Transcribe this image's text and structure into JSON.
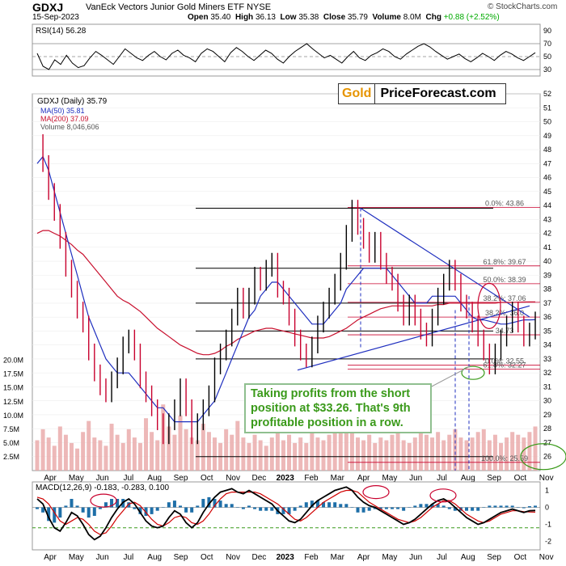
{
  "header": {
    "ticker": "GDXJ",
    "description": "VanEck Vectors Junior Gold Miners ETF NYSE",
    "watermark": "© StockCharts.com",
    "date": "15-Sep-2023",
    "open_label": "Open",
    "open": "35.40",
    "high_label": "High",
    "high": "36.13",
    "low_label": "Low",
    "low": "35.38",
    "close_label": "Close",
    "close": "35.79",
    "volume_label": "Volume",
    "volume": "8.0M",
    "chg_label": "Chg",
    "chg": "+0.88 (+2.52%)"
  },
  "colors": {
    "price_up": "#000000",
    "price_down": "#c8002d",
    "ma50": "#1f2fbf",
    "ma200": "#c8102e",
    "volume": "#e8a6a6",
    "trendline": "#1f2fbf",
    "fib_line": "#c8002d",
    "annotation": "#3a9a1a",
    "macd": "#000000",
    "signal": "#d00000",
    "histogram": "#1e6fa8"
  },
  "logo": {
    "gold": "Gold",
    "rest": "PriceForecast.com"
  },
  "annotation": "Taking profits from the short position at $33.26. That's 9th profitable position in a row.",
  "chart_data": [
    {
      "type": "line",
      "title": "RSI(14) 56.28",
      "ylim": [
        20,
        100
      ],
      "yticks": [
        "90",
        "70",
        "50",
        "30"
      ],
      "reference_lines": [
        70,
        50,
        30
      ],
      "series": [
        {
          "name": "RSI(14)",
          "last_value": 56.28,
          "values": [
            55,
            35,
            30,
            45,
            38,
            52,
            40,
            33,
            36,
            48,
            58,
            52,
            45,
            38,
            50,
            62,
            55,
            48,
            44,
            52,
            58,
            50,
            45,
            55,
            60,
            52,
            48,
            42,
            55,
            62,
            58,
            50,
            42,
            56,
            64,
            58,
            50,
            44,
            52,
            60,
            55,
            46,
            40,
            50,
            58,
            64,
            70,
            62,
            55,
            48,
            52,
            46,
            40,
            50,
            58,
            48,
            44,
            52,
            56,
            62,
            58,
            50,
            46,
            54,
            60,
            66,
            70,
            65,
            58,
            52,
            46,
            50,
            54,
            47,
            42,
            48,
            55,
            50,
            44,
            52,
            58,
            54,
            48,
            44,
            50,
            56
          ]
        }
      ]
    },
    {
      "type": "line",
      "title": "GDXJ (Daily) 35.79",
      "ylim": [
        25,
        52
      ],
      "yticks": [
        "52",
        "51",
        "50",
        "49",
        "48",
        "47",
        "46",
        "45",
        "44",
        "43",
        "42",
        "41",
        "40",
        "39",
        "38",
        "37",
        "36",
        "35",
        "34",
        "33",
        "32",
        "31",
        "30",
        "29",
        "28",
        "27",
        "26"
      ],
      "xticks": [
        "Apr",
        "May",
        "Jun",
        "Jul",
        "Aug",
        "Sep",
        "Oct",
        "Nov",
        "Dec",
        "2023",
        "Feb",
        "Mar",
        "Apr",
        "May",
        "Jun",
        "Jul",
        "Aug",
        "Sep",
        "Oct",
        "Nov"
      ],
      "legend_position": "top-left",
      "series": [
        {
          "name": "GDXJ (Daily) 35.79",
          "values": [
            48.5,
            47.0,
            45.0,
            43.5,
            41.5,
            39.5,
            38.0,
            36.5,
            35.5,
            33.5,
            32.0,
            31.0,
            30.5,
            31.5,
            32.5,
            34.0,
            34.5,
            33.5,
            31.5,
            30.5,
            29.5,
            28.5,
            27.5,
            28.5,
            29.5,
            31.0,
            29.5,
            27.5,
            28.5,
            29.5,
            30.5,
            32.5,
            33.5,
            34.5,
            36.0,
            37.5,
            36.5,
            37.5,
            39.0,
            38.5,
            39.5,
            40.0,
            38.0,
            37.5,
            36.0,
            34.5,
            33.5,
            33.0,
            34.0,
            35.5,
            36.5,
            37.5,
            38.5,
            40.0,
            42.0,
            43.8,
            42.5,
            41.5,
            40.5,
            41.5,
            40.0,
            39.0,
            38.5,
            37.0,
            36.0,
            37.0,
            36.0,
            35.0,
            34.5,
            36.0,
            37.5,
            38.5,
            39.5,
            38.5,
            37.0,
            36.5,
            35.5,
            34.5,
            33.5,
            32.5,
            33.5,
            34.5,
            35.5,
            36.5,
            35.5,
            34.5,
            35.0,
            35.79
          ]
        },
        {
          "name": "MA(50) 35.81",
          "values": [
            47.0,
            47.5,
            46.5,
            45.0,
            43.5,
            42.0,
            40.5,
            39.0,
            37.5,
            36.0,
            35.0,
            34.0,
            33.0,
            32.5,
            32.0,
            32.0,
            32.0,
            31.5,
            31.0,
            30.5,
            30.0,
            29.5,
            29.5,
            29.0,
            28.5,
            28.5,
            28.5,
            28.5,
            28.5,
            29.0,
            29.5,
            30.0,
            31.0,
            32.0,
            33.0,
            34.0,
            35.0,
            36.0,
            36.5,
            37.5,
            38.0,
            38.5,
            38.5,
            38.0,
            37.5,
            37.0,
            36.5,
            36.0,
            35.5,
            35.5,
            35.5,
            36.0,
            36.5,
            37.0,
            38.0,
            38.5,
            39.0,
            39.5,
            39.5,
            39.5,
            39.5,
            39.5,
            39.0,
            38.5,
            38.0,
            37.5,
            37.0,
            37.0,
            37.0,
            37.5,
            37.5,
            37.5,
            37.5,
            37.5,
            37.0,
            36.5,
            36.0,
            35.8,
            35.8,
            35.7,
            35.6,
            35.5,
            35.5,
            35.6,
            35.7,
            35.8,
            35.8,
            35.81
          ]
        },
        {
          "name": "MA(200) 37.09",
          "values": [
            42.0,
            42.2,
            42.2,
            42.0,
            41.8,
            41.5,
            41.2,
            40.8,
            40.5,
            40.0,
            39.5,
            39.0,
            38.5,
            38.0,
            37.5,
            37.2,
            37.0,
            36.7,
            36.4,
            36.0,
            35.6,
            35.2,
            34.9,
            34.6,
            34.3,
            34.0,
            33.8,
            33.6,
            33.4,
            33.3,
            33.3,
            33.4,
            33.6,
            33.9,
            34.1,
            34.4,
            34.6,
            34.8,
            35.0,
            35.1,
            35.2,
            35.2,
            35.1,
            35.0,
            34.9,
            34.8,
            34.7,
            34.6,
            34.5,
            34.5,
            34.5,
            34.6,
            34.8,
            35.0,
            35.2,
            35.5,
            35.8,
            36.0,
            36.2,
            36.4,
            36.6,
            36.7,
            36.8,
            36.8,
            36.8,
            36.8,
            36.8,
            36.8,
            36.8,
            36.8,
            36.9,
            36.9,
            37.0,
            37.0,
            37.0,
            37.0,
            37.0,
            37.0,
            37.0,
            37.0,
            37.0,
            37.05,
            37.05,
            37.05,
            37.07,
            37.08,
            37.09,
            37.09
          ]
        }
      ],
      "fibonacci": [
        {
          "label": "0.0%: 43.86",
          "value": 43.86
        },
        {
          "label": "61.8%: 39.67",
          "value": 39.67
        },
        {
          "label": "50.0%: 38.39",
          "value": 38.39
        },
        {
          "label": "38.2%: 37.06",
          "value": 37.06
        },
        {
          "label": "38.2%: 36.0",
          "value": 36.0
        },
        {
          "label": "34.73",
          "value": 34.73
        },
        {
          "label": "0.0%: 32.55",
          "value": 32.55
        },
        {
          "label": "61.8%: 32.27",
          "value": 32.27
        },
        {
          "label": "100.0%: 25.59",
          "value": 25.59
        }
      ],
      "horizontal_levels": [
        43.8,
        39.5,
        37.0,
        35.0,
        33.0,
        26.0
      ]
    },
    {
      "type": "bar",
      "title": "Volume 8,046,606",
      "ylim": [
        0,
        22000000
      ],
      "yticks": [
        "20.0M",
        "17.5M",
        "15.0M",
        "12.5M",
        "10.0M",
        "7.5M",
        "5.0M",
        "2.5M"
      ],
      "series": [
        {
          "name": "Volume",
          "values": [
            5.5,
            7.5,
            6.0,
            4.5,
            8.0,
            6.5,
            5.0,
            4.0,
            7.0,
            9.0,
            6.0,
            5.5,
            4.5,
            8.5,
            6.5,
            5.0,
            7.5,
            6.0,
            5.0,
            9.5,
            7.0,
            5.5,
            12.0,
            8.0,
            6.5,
            10.0,
            7.5,
            6.0,
            5.5,
            8.5,
            7.0,
            6.0,
            5.0,
            7.5,
            6.5,
            9.0,
            6.0,
            5.0,
            6.5,
            5.5,
            4.5,
            6.0,
            7.5,
            5.5,
            6.5,
            5.0,
            6.0,
            5.0,
            7.0,
            6.0,
            5.5,
            6.5,
            7.5,
            8.0,
            9.0,
            8.5,
            6.0,
            5.5,
            6.5,
            5.0,
            6.0,
            5.5,
            6.5,
            7.0,
            5.5,
            5.0,
            6.0,
            7.5,
            6.5,
            6.0,
            7.0,
            5.5,
            6.5,
            7.5,
            6.0,
            5.5,
            6.0,
            7.0,
            7.5,
            5.5,
            6.5,
            5.0,
            6.0,
            7.0,
            6.5,
            6.0,
            7.0,
            8.0
          ]
        }
      ]
    },
    {
      "type": "line",
      "title": "MACD(12,26,9) -0.183, -0.283, 0.100",
      "ylim": [
        -2.5,
        1.5
      ],
      "yticks": [
        "1",
        "0",
        "-1",
        "-2"
      ],
      "xticks": [
        "Apr",
        "May",
        "Jun",
        "Jul",
        "Aug",
        "Sep",
        "Oct",
        "Nov",
        "Dec",
        "2023",
        "Feb",
        "Mar",
        "Apr",
        "May",
        "Jun",
        "Jul",
        "Aug",
        "Sep",
        "Oct",
        "Nov"
      ],
      "series": [
        {
          "name": "MACD(12,26,9)",
          "last_value": -0.183,
          "values": [
            0.5,
            0.2,
            -0.6,
            -1.2,
            -1.4,
            -0.9,
            -0.3,
            -0.5,
            -1.0,
            -1.6,
            -1.9,
            -1.7,
            -1.2,
            -0.6,
            -0.1,
            0.3,
            0.5,
            0.2,
            -0.3,
            -0.8,
            -1.1,
            -1.2,
            -1.1,
            -0.6,
            -0.2,
            -0.4,
            -0.9,
            -1.2,
            -0.9,
            -0.3,
            0.2,
            0.6,
            0.9,
            1.0,
            1.1,
            0.9,
            0.8,
            1.0,
            0.8,
            0.6,
            0.4,
            0.2,
            -0.2,
            -0.5,
            -0.8,
            -0.9,
            -0.7,
            -0.3,
            0.1,
            0.4,
            0.6,
            0.8,
            1.0,
            1.1,
            1.2,
            1.0,
            0.6,
            0.3,
            0.1,
            0.0,
            -0.2,
            -0.4,
            -0.6,
            -0.8,
            -1.0,
            -0.9,
            -0.7,
            -0.4,
            -0.1,
            0.2,
            0.4,
            0.5,
            0.3,
            0.0,
            -0.3,
            -0.6,
            -0.8,
            -1.0,
            -0.9,
            -0.7,
            -0.5,
            -0.3,
            -0.2,
            -0.1,
            -0.2,
            -0.3,
            -0.2,
            -0.183
          ]
        },
        {
          "name": "Signal",
          "last_value": -0.283,
          "values": [
            0.6,
            0.5,
            0.2,
            -0.3,
            -0.8,
            -1.0,
            -0.8,
            -0.6,
            -0.7,
            -1.0,
            -1.4,
            -1.6,
            -1.5,
            -1.1,
            -0.6,
            -0.2,
            0.2,
            0.3,
            0.1,
            -0.3,
            -0.7,
            -1.0,
            -1.1,
            -0.9,
            -0.6,
            -0.5,
            -0.6,
            -0.9,
            -1.0,
            -0.8,
            -0.4,
            0.1,
            0.5,
            0.8,
            0.9,
            0.9,
            0.9,
            0.9,
            0.9,
            0.8,
            0.6,
            0.4,
            0.2,
            -0.1,
            -0.4,
            -0.7,
            -0.8,
            -0.6,
            -0.3,
            0.0,
            0.3,
            0.5,
            0.7,
            0.9,
            1.0,
            1.0,
            0.9,
            0.6,
            0.3,
            0.1,
            -0.1,
            -0.3,
            -0.5,
            -0.7,
            -0.8,
            -0.9,
            -0.8,
            -0.6,
            -0.3,
            0.0,
            0.2,
            0.4,
            0.4,
            0.2,
            -0.1,
            -0.4,
            -0.6,
            -0.8,
            -0.9,
            -0.8,
            -0.6,
            -0.4,
            -0.3,
            -0.2,
            -0.2,
            -0.25,
            -0.27,
            -0.283
          ]
        },
        {
          "name": "Histogram",
          "last_value": 0.1
        }
      ],
      "reference_lines": [
        0,
        -1.2
      ]
    }
  ]
}
